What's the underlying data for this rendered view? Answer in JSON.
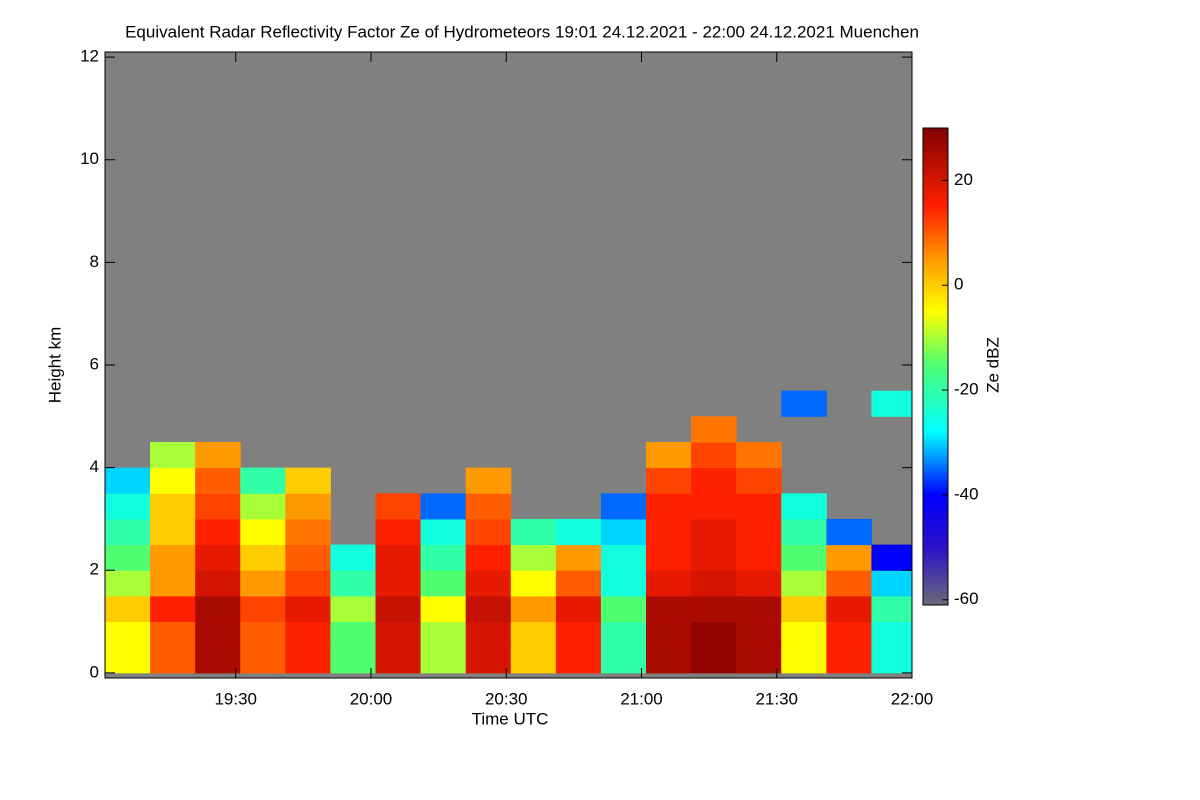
{
  "chart_data": {
    "type": "heatmap",
    "title": "Equivalent Radar Reflectivity Factor Ze of Hydrometeors   19:01 24.12.2021 - 22:00 24.12.2021 Muenchen",
    "x_label": "Time UTC",
    "y_label": "Height km",
    "colorbar_label": "Ze dBZ",
    "x": [
      1146,
      1156,
      1166,
      1176,
      1186,
      1196,
      1206,
      1216,
      1226,
      1236,
      1246,
      1256,
      1266,
      1276,
      1286,
      1296,
      1306,
      1316
    ],
    "y": [
      0.25,
      0.75,
      1.25,
      1.75,
      2.25,
      2.75,
      3.25,
      3.75,
      4.25,
      4.75,
      5.25
    ],
    "values": [
      [
        -5,
        10,
        25,
        10,
        15,
        -15,
        20,
        -10,
        20,
        0,
        15,
        -20,
        25,
        28,
        25,
        -5,
        15,
        -25
      ],
      [
        -5,
        10,
        25,
        10,
        15,
        -15,
        20,
        -10,
        20,
        0,
        15,
        -20,
        25,
        28,
        25,
        -5,
        15,
        -25
      ],
      [
        0,
        15,
        25,
        12,
        18,
        -10,
        22,
        -5,
        22,
        5,
        18,
        -15,
        25,
        25,
        25,
        0,
        18,
        -20
      ],
      [
        -10,
        5,
        20,
        5,
        12,
        -20,
        18,
        -15,
        18,
        -5,
        10,
        -25,
        18,
        20,
        18,
        -10,
        10,
        -30
      ],
      [
        -15,
        5,
        18,
        0,
        10,
        -25,
        18,
        -20,
        15,
        -10,
        5,
        -25,
        15,
        18,
        15,
        -15,
        5,
        -40
      ],
      [
        -20,
        0,
        15,
        -5,
        8,
        null,
        15,
        -25,
        12,
        -20,
        -25,
        -30,
        15,
        18,
        15,
        -20,
        -35,
        null
      ],
      [
        -25,
        0,
        12,
        -10,
        5,
        null,
        12,
        -35,
        10,
        null,
        null,
        -35,
        15,
        15,
        15,
        -25,
        null,
        null
      ],
      [
        -30,
        -5,
        10,
        -20,
        0,
        null,
        null,
        null,
        5,
        null,
        null,
        null,
        12,
        15,
        12,
        null,
        null,
        null
      ],
      [
        null,
        -10,
        5,
        null,
        null,
        null,
        null,
        null,
        null,
        null,
        null,
        null,
        5,
        12,
        8,
        null,
        null,
        null
      ],
      [
        null,
        null,
        null,
        null,
        null,
        null,
        null,
        null,
        null,
        null,
        null,
        null,
        null,
        8,
        null,
        null,
        null,
        null
      ],
      [
        null,
        null,
        null,
        null,
        null,
        null,
        null,
        null,
        null,
        null,
        null,
        null,
        null,
        null,
        null,
        -35,
        null,
        -25
      ]
    ],
    "xlim": [
      1141,
      1320
    ],
    "xticks": [
      {
        "value": 1170,
        "label": "19:30"
      },
      {
        "value": 1200,
        "label": "20:00"
      },
      {
        "value": 1230,
        "label": "20:30"
      },
      {
        "value": 1260,
        "label": "21:00"
      },
      {
        "value": 1290,
        "label": "21:30"
      },
      {
        "value": 1320,
        "label": "22:00"
      }
    ],
    "ylim": [
      -0.1,
      12.1
    ],
    "yticks": [
      0,
      2,
      4,
      6,
      8,
      10,
      12
    ],
    "zlim": [
      -61,
      30
    ],
    "zticks": [
      -60,
      -40,
      -20,
      0,
      20
    ],
    "colorscale": [
      [
        -61,
        "#6a6a78"
      ],
      [
        -50,
        "#2a10c8"
      ],
      [
        -40,
        "#0000ff"
      ],
      [
        -28,
        "#00ffff"
      ],
      [
        -15,
        "#50ff70"
      ],
      [
        -5,
        "#ffff00"
      ],
      [
        5,
        "#ff9900"
      ],
      [
        15,
        "#ff2000"
      ],
      [
        30,
        "#800000"
      ]
    ],
    "no_echo_color": "#808080"
  }
}
